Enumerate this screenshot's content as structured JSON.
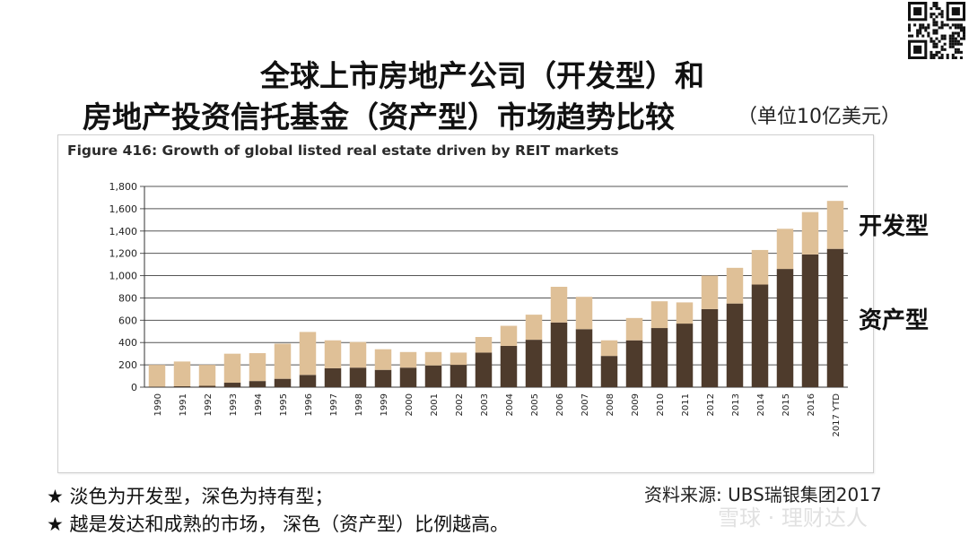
{
  "header": {
    "title_line1": "全球上市房地产公司（开发型）和",
    "title_line2": "房地产投资信托基金（资产型）市场趋势比较",
    "unit_note": "（单位10亿美元）"
  },
  "side_labels": {
    "development": "开发型",
    "asset": "资产型"
  },
  "notes": [
    "★ 淡色为开发型，深色为持有型；",
    "★ 越是发达和成熟的市场， 深色（资产型）比例越高。"
  ],
  "source": "资料来源: UBS瑞银集团2017",
  "watermark": "雪球 · 理财达人",
  "colors": {
    "light_series": "#dfc097",
    "dark_series": "#4e3b2c",
    "grid": "#555555"
  },
  "chart_data": {
    "type": "bar",
    "stacked": true,
    "title": "Figure 416: Growth of global listed real estate driven by REIT markets",
    "categories": [
      "1990",
      "1991",
      "1992",
      "1993",
      "1994",
      "1995",
      "1996",
      "1997",
      "1998",
      "1999",
      "2000",
      "2001",
      "2002",
      "2003",
      "2004",
      "2005",
      "2006",
      "2007",
      "2008",
      "2009",
      "2010",
      "2011",
      "2012",
      "2013",
      "2014",
      "2015",
      "2016",
      "2017 YTD"
    ],
    "series": [
      {
        "values": [
          5,
          8,
          12,
          40,
          55,
          75,
          110,
          170,
          175,
          155,
          175,
          195,
          200,
          310,
          370,
          425,
          580,
          520,
          280,
          420,
          530,
          570,
          700,
          750,
          920,
          1060,
          1190,
          1240
        ]
      },
      {
        "values": [
          195,
          222,
          188,
          260,
          250,
          315,
          385,
          250,
          230,
          185,
          140,
          120,
          110,
          140,
          180,
          225,
          320,
          290,
          140,
          200,
          240,
          190,
          300,
          320,
          310,
          360,
          380,
          430
        ]
      }
    ],
    "ylim": [
      0,
      1800
    ],
    "yticks": [
      0,
      200,
      400,
      600,
      800,
      1000,
      1200,
      1400,
      1600,
      1800
    ],
    "ytick_labels": [
      "0",
      "200",
      "400",
      "600",
      "800",
      "1,000",
      "1,200",
      "1,400",
      "1,600",
      "1,800"
    ],
    "grid": true,
    "legend": "none"
  }
}
